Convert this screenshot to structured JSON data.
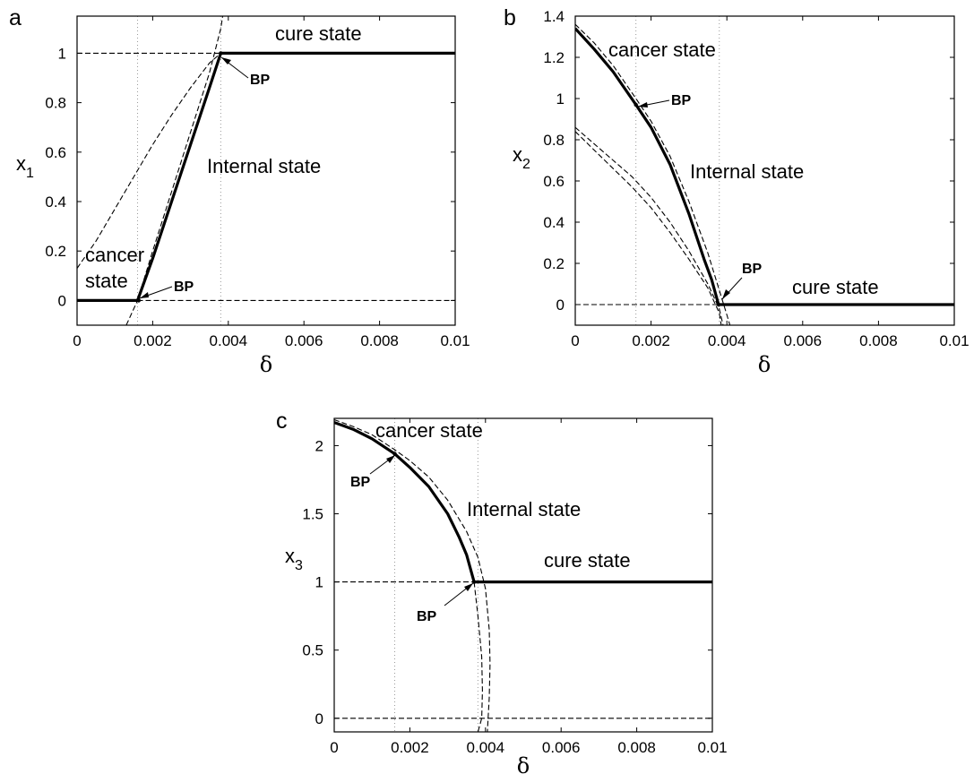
{
  "chart_data": [
    {
      "type": "line",
      "panel_label": "a",
      "xlabel": "δ",
      "ylabel": "x",
      "ylabel_sub": "1",
      "xlim": [
        0,
        0.01
      ],
      "ylim": [
        -0.1,
        1.15
      ],
      "x_ticks": [
        "0",
        "0.002",
        "0.004",
        "0.006",
        "0.008",
        "0.01"
      ],
      "y_ticks": [
        "0",
        "0.2",
        "0.4",
        "0.6",
        "0.8",
        "1"
      ],
      "vlines": [
        0.0016,
        0.0038
      ],
      "bp_points": [
        {
          "x": 0.00163,
          "y": 0.0
        },
        {
          "x": 0.0038,
          "y": 1.0
        }
      ],
      "series": [
        {
          "style": "solid",
          "points": [
            [
              0,
              0
            ],
            [
              0.0016,
              0
            ]
          ]
        },
        {
          "style": "solid",
          "points": [
            [
              0.0016,
              0
            ],
            [
              0.002,
              0.17
            ],
            [
              0.0025,
              0.4
            ],
            [
              0.003,
              0.63
            ],
            [
              0.0035,
              0.86
            ],
            [
              0.0038,
              1.0
            ]
          ]
        },
        {
          "style": "solid",
          "points": [
            [
              0.0038,
              1.0
            ],
            [
              0.01,
              1.0
            ]
          ]
        },
        {
          "style": "dashed",
          "points": [
            [
              0.0016,
              0
            ],
            [
              0.01,
              0
            ]
          ]
        },
        {
          "style": "dashed",
          "points": [
            [
              0,
              1.0
            ],
            [
              0.0038,
              1.0
            ]
          ]
        },
        {
          "style": "dashed",
          "points": [
            [
              0,
              0.13
            ],
            [
              0.0005,
              0.24
            ],
            [
              0.001,
              0.37
            ],
            [
              0.0015,
              0.5
            ],
            [
              0.002,
              0.63
            ],
            [
              0.0025,
              0.75
            ],
            [
              0.003,
              0.86
            ],
            [
              0.0035,
              0.96
            ],
            [
              0.0038,
              1.0
            ]
          ]
        },
        {
          "style": "dashed",
          "points": [
            [
              0.0013,
              -0.1
            ],
            [
              0.0016,
              0
            ],
            [
              0.002,
              0.2
            ],
            [
              0.0025,
              0.44
            ],
            [
              0.003,
              0.68
            ],
            [
              0.0035,
              0.92
            ],
            [
              0.0038,
              1.1
            ],
            [
              0.00385,
              1.15
            ]
          ]
        }
      ],
      "annotations": [
        "cure state",
        "Internal state",
        "cancer",
        "state",
        "BP",
        "BP"
      ]
    },
    {
      "type": "line",
      "panel_label": "b",
      "xlabel": "δ",
      "ylabel": "x",
      "ylabel_sub": "2",
      "xlim": [
        0,
        0.01
      ],
      "ylim": [
        -0.1,
        1.4
      ],
      "x_ticks": [
        "0",
        "0.002",
        "0.004",
        "0.006",
        "0.008",
        "0.01"
      ],
      "y_ticks": [
        "0",
        "0.2",
        "0.4",
        "0.6",
        "0.8",
        "1",
        "1.2",
        "1.4"
      ],
      "vlines": [
        0.0016,
        0.0038
      ],
      "bp_points": [
        {
          "x": 0.0016,
          "y": 0.97
        },
        {
          "x": 0.00378,
          "y": 0.0
        }
      ],
      "series": [
        {
          "style": "solid",
          "points": [
            [
              0,
              1.34
            ],
            [
              0.0005,
              1.24
            ],
            [
              0.001,
              1.13
            ],
            [
              0.0016,
              0.97
            ],
            [
              0.002,
              0.86
            ],
            [
              0.0025,
              0.68
            ],
            [
              0.003,
              0.44
            ],
            [
              0.0034,
              0.22
            ],
            [
              0.0036,
              0.12
            ],
            [
              0.00378,
              0.0
            ]
          ]
        },
        {
          "style": "solid",
          "points": [
            [
              0.00378,
              0.0
            ],
            [
              0.01,
              0.0
            ]
          ]
        },
        {
          "style": "dashed",
          "points": [
            [
              0,
              0.0
            ],
            [
              0.00378,
              0.0
            ]
          ]
        },
        {
          "style": "dashed",
          "points": [
            [
              0,
              1.36
            ],
            [
              0.0005,
              1.27
            ],
            [
              0.001,
              1.16
            ],
            [
              0.0016,
              1.0
            ],
            [
              0.002,
              0.89
            ],
            [
              0.0025,
              0.72
            ],
            [
              0.003,
              0.5
            ],
            [
              0.0035,
              0.25
            ],
            [
              0.004,
              -0.05
            ],
            [
              0.00408,
              -0.1
            ]
          ]
        },
        {
          "style": "dashed",
          "points": [
            [
              0,
              0.86
            ],
            [
              0.0005,
              0.78
            ],
            [
              0.001,
              0.7
            ],
            [
              0.0015,
              0.62
            ],
            [
              0.002,
              0.52
            ],
            [
              0.0025,
              0.4
            ],
            [
              0.003,
              0.26
            ],
            [
              0.0035,
              0.1
            ],
            [
              0.0038,
              -0.02
            ],
            [
              0.0039,
              -0.1
            ]
          ]
        },
        {
          "style": "dashed",
          "points": [
            [
              0,
              0.84
            ],
            [
              0.0005,
              0.75
            ],
            [
              0.001,
              0.66
            ],
            [
              0.0015,
              0.57
            ],
            [
              0.002,
              0.47
            ],
            [
              0.0025,
              0.35
            ],
            [
              0.003,
              0.22
            ],
            [
              0.0035,
              0.08
            ],
            [
              0.0038,
              -0.04
            ],
            [
              0.00385,
              -0.1
            ]
          ]
        }
      ],
      "annotations": [
        "cancer state",
        "Internal state",
        "cure state",
        "BP",
        "BP"
      ]
    },
    {
      "type": "line",
      "panel_label": "c",
      "xlabel": "δ",
      "ylabel": "x",
      "ylabel_sub": "3",
      "xlim": [
        0,
        0.01
      ],
      "ylim": [
        -0.1,
        2.2
      ],
      "x_ticks": [
        "0",
        "0.002",
        "0.004",
        "0.006",
        "0.008",
        "0.01"
      ],
      "y_ticks": [
        "0",
        "0.5",
        "1",
        "1.5",
        "2"
      ],
      "vlines": [
        0.0016,
        0.0038
      ],
      "bp_points": [
        {
          "x": 0.0016,
          "y": 1.94
        },
        {
          "x": 0.0037,
          "y": 1.0
        }
      ],
      "series": [
        {
          "style": "solid",
          "points": [
            [
              0,
              2.17
            ],
            [
              0.0005,
              2.12
            ],
            [
              0.001,
              2.05
            ],
            [
              0.0016,
              1.94
            ],
            [
              0.002,
              1.84
            ],
            [
              0.0025,
              1.7
            ],
            [
              0.003,
              1.5
            ],
            [
              0.0033,
              1.33
            ],
            [
              0.0035,
              1.2
            ],
            [
              0.0037,
              1.0
            ]
          ]
        },
        {
          "style": "solid",
          "points": [
            [
              0.0037,
              1.0
            ],
            [
              0.01,
              1.0
            ]
          ]
        },
        {
          "style": "dashed",
          "points": [
            [
              0,
              1.0
            ],
            [
              0.0037,
              1.0
            ]
          ]
        },
        {
          "style": "dashed",
          "points": [
            [
              0,
              0.0
            ],
            [
              0.01,
              0.0
            ]
          ]
        },
        {
          "style": "dashed",
          "points": [
            [
              0,
              2.19
            ],
            [
              0.0005,
              2.14
            ],
            [
              0.001,
              2.08
            ],
            [
              0.0016,
              1.97
            ],
            [
              0.002,
              1.89
            ],
            [
              0.0025,
              1.77
            ],
            [
              0.003,
              1.6
            ],
            [
              0.0035,
              1.37
            ],
            [
              0.0038,
              1.18
            ],
            [
              0.004,
              0.95
            ],
            [
              0.0041,
              0.65
            ],
            [
              0.00412,
              0.4
            ],
            [
              0.0041,
              0.15
            ],
            [
              0.00405,
              -0.1
            ]
          ]
        },
        {
          "style": "dashed",
          "points": [
            [
              0.0037,
              1.0
            ],
            [
              0.0038,
              0.75
            ],
            [
              0.0039,
              0.45
            ],
            [
              0.00392,
              0.2
            ],
            [
              0.0039,
              0.0
            ],
            [
              0.0038,
              -0.1
            ]
          ]
        }
      ],
      "annotations": [
        "cancer state",
        "Internal state",
        "cure state",
        "BP",
        "BP"
      ]
    }
  ]
}
